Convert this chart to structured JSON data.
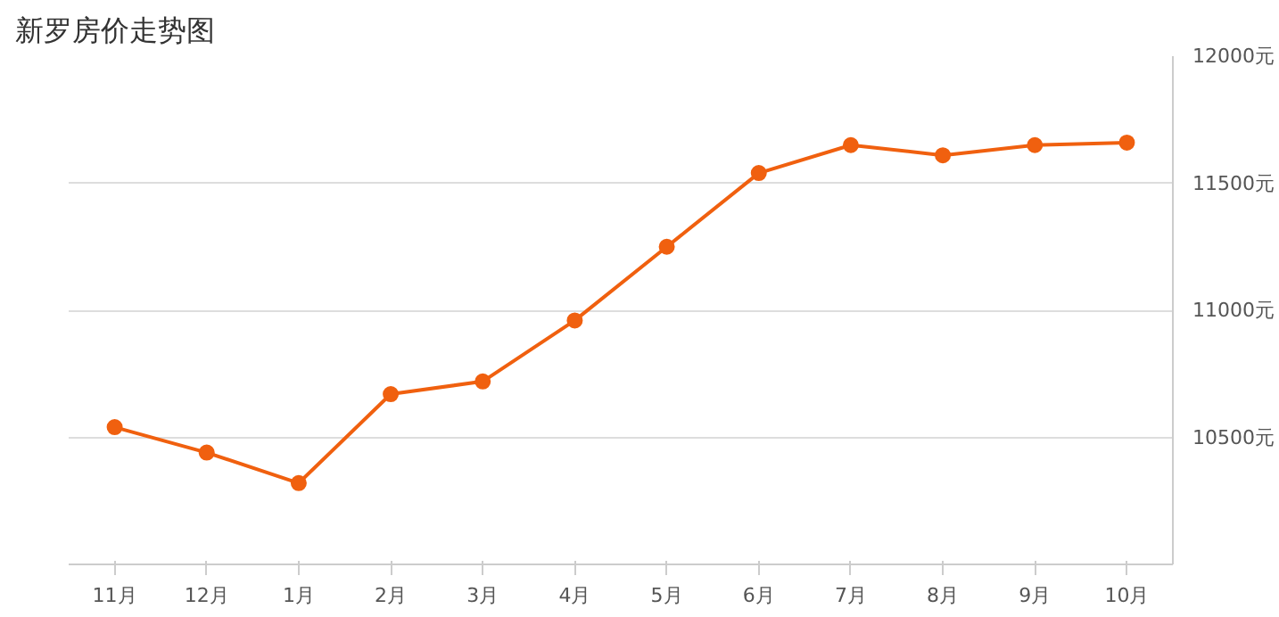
{
  "chart_data": {
    "type": "line",
    "title": "新罗房价走势图",
    "categories": [
      "11月",
      "12月",
      "1月",
      "2月",
      "3月",
      "4月",
      "5月",
      "6月",
      "7月",
      "8月",
      "9月",
      "10月"
    ],
    "series": [
      {
        "color": "#f0600f",
        "values": [
          10540,
          10440,
          10320,
          10670,
          10720,
          10960,
          11250,
          11540,
          11650,
          11610,
          11650,
          11660
        ]
      }
    ],
    "ylim": [
      10000,
      12000
    ],
    "yticks": [
      {
        "value": 10500,
        "label": "10500元"
      },
      {
        "value": 11000,
        "label": "11000元"
      },
      {
        "value": 11500,
        "label": "11500元"
      },
      {
        "value": 12000,
        "label": "12000元"
      }
    ],
    "grid": "y",
    "marker": "circle"
  }
}
